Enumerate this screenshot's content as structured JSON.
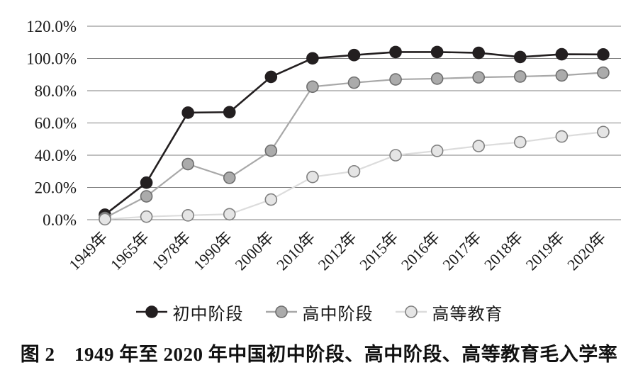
{
  "figure": {
    "caption": "图 2　1949 年至 2020 年中国初中阶段、高中阶段、高等教育毛入学率"
  },
  "chart_data": {
    "type": "line",
    "title": "",
    "xlabel": "",
    "ylabel": "",
    "categories": [
      "1949年",
      "1965年",
      "1978年",
      "1990年",
      "2000年",
      "2010年",
      "2012年",
      "2015年",
      "2016年",
      "2017年",
      "2018年",
      "2019年",
      "2020年"
    ],
    "series": [
      {
        "name": "初中阶段",
        "values": [
          3.1,
          23.0,
          66.4,
          66.7,
          88.6,
          100.1,
          102.1,
          104.0,
          104.0,
          103.5,
          100.9,
          102.6,
          102.5
        ],
        "line_color": "#231f20",
        "dot_fill": "#231f20",
        "dot_stroke": "#231f20",
        "line_width": 2.6
      },
      {
        "name": "高中阶段",
        "values": [
          1.1,
          14.5,
          34.5,
          26.0,
          42.8,
          82.5,
          85.0,
          87.0,
          87.5,
          88.3,
          88.8,
          89.5,
          91.2
        ],
        "line_color": "#a8a8a8",
        "dot_fill": "#ababab",
        "dot_stroke": "#6e6e6e",
        "line_width": 2.2
      },
      {
        "name": "高等教育",
        "values": [
          0.3,
          1.9,
          2.7,
          3.4,
          12.5,
          26.5,
          30.0,
          40.0,
          42.7,
          45.7,
          48.1,
          51.6,
          54.4
        ],
        "line_color": "#dcdcdc",
        "dot_fill": "#e5e5e5",
        "dot_stroke": "#808080",
        "line_width": 2.2
      }
    ],
    "ylim": [
      0,
      120
    ],
    "ytick_values": [
      0,
      20,
      40,
      60,
      80,
      100,
      120
    ],
    "ytick_labels": [
      "0.0%",
      "20.0%",
      "40.0%",
      "60.0%",
      "80.0%",
      "100.0%",
      "120.0%"
    ],
    "grid": "horizontal",
    "legend_position": "bottom"
  },
  "colors": {
    "grid": "#7f7f7f",
    "text": "#1a1a1a",
    "background": "#ffffff"
  }
}
